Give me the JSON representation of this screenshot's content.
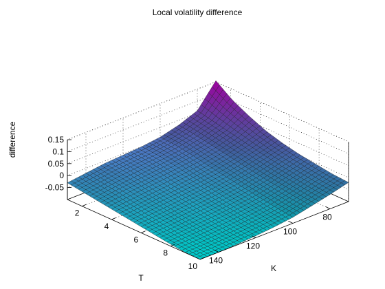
{
  "chart_data": {
    "type": "surface3d",
    "title": "Local volatility difference",
    "xlabel": "K",
    "ylabel": "T",
    "zlabel": "difference",
    "xlim": [
      70,
      150
    ],
    "ylim": [
      1,
      10
    ],
    "zlim": [
      -0.1,
      0.15
    ],
    "xticks": [
      80,
      100,
      120,
      140
    ],
    "yticks": [
      2,
      4,
      6,
      8,
      10
    ],
    "zticks": [
      -0.05,
      0,
      0.05,
      0.1,
      0.15
    ],
    "grid": true,
    "colormap": "cool",
    "surface": {
      "x": [
        70,
        80,
        90,
        100,
        110,
        120,
        130,
        140,
        150
      ],
      "y": [
        1,
        2.125,
        3.25,
        4.375,
        5.5,
        6.625,
        7.75,
        8.875,
        10
      ],
      "z": [
        [
          0.155,
          0.06,
          0.03,
          0.01,
          0.0,
          -0.005,
          -0.01,
          -0.02,
          -0.03
        ],
        [
          0.105,
          0.045,
          0.02,
          0.005,
          -0.005,
          -0.012,
          -0.02,
          -0.03,
          -0.04
        ],
        [
          0.07,
          0.03,
          0.008,
          -0.006,
          -0.016,
          -0.024,
          -0.032,
          -0.04,
          -0.05
        ],
        [
          0.04,
          0.015,
          -0.005,
          -0.02,
          -0.03,
          -0.038,
          -0.045,
          -0.053,
          -0.06
        ],
        [
          0.02,
          0.0,
          -0.018,
          -0.032,
          -0.042,
          -0.05,
          -0.057,
          -0.064,
          -0.07
        ],
        [
          0.005,
          -0.012,
          -0.03,
          -0.044,
          -0.054,
          -0.062,
          -0.068,
          -0.075,
          -0.08
        ],
        [
          -0.005,
          -0.022,
          -0.04,
          -0.055,
          -0.065,
          -0.073,
          -0.079,
          -0.085,
          -0.09
        ],
        [
          -0.015,
          -0.032,
          -0.05,
          -0.066,
          -0.076,
          -0.084,
          -0.09,
          -0.095,
          -0.098
        ],
        [
          -0.02,
          -0.04,
          -0.058,
          -0.075,
          -0.085,
          -0.092,
          -0.097,
          -0.1,
          -0.1
        ]
      ]
    }
  }
}
